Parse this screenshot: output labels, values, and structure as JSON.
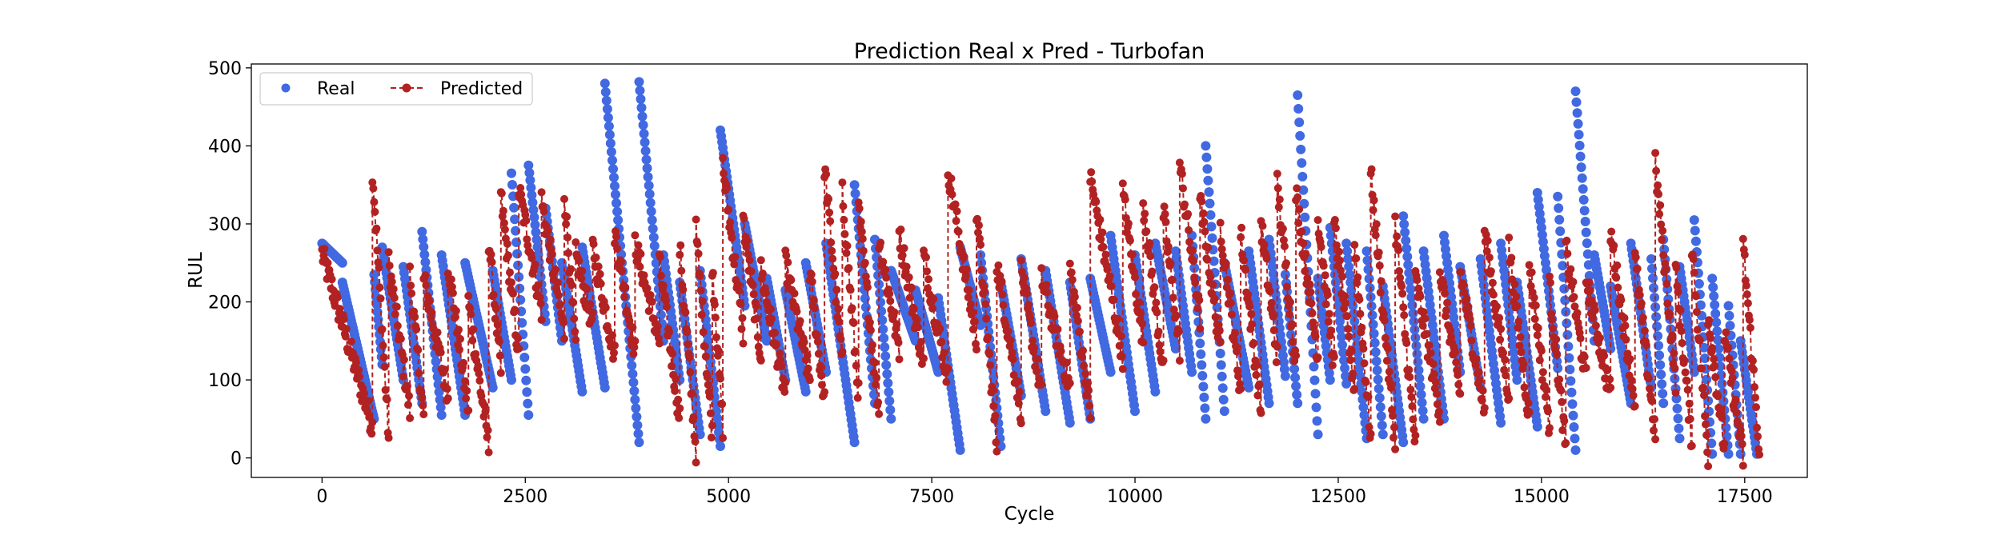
{
  "chart_data": {
    "type": "scatter",
    "title": "Prediction Real x Pred - Turbofan",
    "xlabel": "Cycle",
    "ylabel": "RUL",
    "xlim": [
      -870,
      18270
    ],
    "ylim": [
      -25,
      505
    ],
    "xticks": [
      0,
      2500,
      5000,
      7500,
      10000,
      12500,
      15000,
      17500
    ],
    "xtick_labels": [
      "0",
      "2500",
      "5000",
      "7500",
      "10000",
      "12500",
      "15000",
      "17500"
    ],
    "yticks": [
      0,
      100,
      200,
      300,
      400,
      500
    ],
    "ytick_labels": [
      "0",
      "100",
      "200",
      "300",
      "400",
      "500"
    ],
    "grid": false,
    "legend": {
      "placement": "top-left",
      "columns": 2,
      "entries": [
        "Real",
        "Predicted"
      ]
    },
    "series": [
      {
        "name": "Real",
        "style": "markers",
        "color": "#4169e1",
        "runs": [
          [
            0,
            275,
            250
          ],
          [
            250,
            225,
            50
          ],
          [
            640,
            235,
            120
          ],
          [
            740,
            270,
            100
          ],
          [
            1000,
            245,
            70
          ],
          [
            1230,
            290,
            55
          ],
          [
            1470,
            260,
            55
          ],
          [
            1760,
            250,
            90
          ],
          [
            2100,
            240,
            100
          ],
          [
            2330,
            365,
            55
          ],
          [
            2540,
            375,
            175
          ],
          [
            2750,
            320,
            150
          ],
          [
            2950,
            250,
            85
          ],
          [
            3200,
            270,
            90
          ],
          [
            3480,
            480,
            20
          ],
          [
            3900,
            482,
            150
          ],
          [
            4200,
            260,
            100
          ],
          [
            4400,
            225,
            30
          ],
          [
            4650,
            240,
            15
          ],
          [
            4900,
            420,
            195
          ],
          [
            5200,
            300,
            150
          ],
          [
            5470,
            230,
            100
          ],
          [
            5700,
            215,
            85
          ],
          [
            5950,
            250,
            110
          ],
          [
            6200,
            275,
            20
          ],
          [
            6550,
            350,
            70
          ],
          [
            6800,
            280,
            50
          ],
          [
            7000,
            240,
            150
          ],
          [
            7300,
            215,
            110
          ],
          [
            7580,
            205,
            10
          ],
          [
            7850,
            270,
            170
          ],
          [
            8100,
            260,
            15
          ],
          [
            8350,
            225,
            80
          ],
          [
            8600,
            255,
            60
          ],
          [
            8900,
            240,
            45
          ],
          [
            9200,
            225,
            50
          ],
          [
            9450,
            230,
            110
          ],
          [
            9700,
            285,
            60
          ],
          [
            10000,
            260,
            85
          ],
          [
            10250,
            275,
            140
          ],
          [
            10500,
            265,
            110
          ],
          [
            10700,
            285,
            50
          ],
          [
            10870,
            400,
            60
          ],
          [
            11100,
            250,
            90
          ],
          [
            11400,
            265,
            70
          ],
          [
            11650,
            280,
            105
          ],
          [
            11850,
            235,
            70
          ],
          [
            12000,
            465,
            30
          ],
          [
            12250,
            230,
            100
          ],
          [
            12400,
            295,
            95
          ],
          [
            12600,
            275,
            25
          ],
          [
            12850,
            265,
            30
          ],
          [
            13050,
            220,
            20
          ],
          [
            13300,
            310,
            50
          ],
          [
            13550,
            265,
            50
          ],
          [
            13800,
            285,
            110
          ],
          [
            14000,
            245,
            90
          ],
          [
            14250,
            255,
            45
          ],
          [
            14500,
            275,
            100
          ],
          [
            14700,
            225,
            40
          ],
          [
            14950,
            340,
            115
          ],
          [
            15200,
            335,
            10
          ],
          [
            15420,
            470,
            150
          ],
          [
            15650,
            260,
            140
          ],
          [
            15850,
            220,
            70
          ],
          [
            16100,
            275,
            90
          ],
          [
            16350,
            255,
            70
          ],
          [
            16500,
            280,
            25
          ],
          [
            16700,
            245,
            110
          ],
          [
            16880,
            305,
            5
          ],
          [
            17100,
            230,
            5
          ],
          [
            17300,
            195,
            5
          ],
          [
            17450,
            150,
            5
          ]
        ]
      },
      {
        "name": "Predicted",
        "style": "dashed-line-markers",
        "color": "#b22222",
        "runs": [
          [
            0,
            262,
            40
          ],
          [
            620,
            370,
            25
          ],
          [
            820,
            250,
            60
          ],
          [
            1080,
            235,
            50
          ],
          [
            1250,
            230,
            80
          ],
          [
            1550,
            250,
            60
          ],
          [
            1800,
            200,
            15
          ],
          [
            2050,
            280,
            110
          ],
          [
            2200,
            335,
            130
          ],
          [
            2420,
            345,
            190
          ],
          [
            2700,
            330,
            160
          ],
          [
            2980,
            340,
            140
          ],
          [
            3120,
            260,
            170
          ],
          [
            3330,
            270,
            130
          ],
          [
            3600,
            290,
            135
          ],
          [
            3850,
            275,
            150
          ],
          [
            4150,
            250,
            50
          ],
          [
            4400,
            270,
            10
          ],
          [
            4600,
            290,
            30
          ],
          [
            4800,
            250,
            40
          ],
          [
            4930,
            375,
            160
          ],
          [
            5180,
            305,
            130
          ],
          [
            5400,
            240,
            80
          ],
          [
            5700,
            250,
            100
          ],
          [
            6000,
            240,
            70
          ],
          [
            6180,
            375,
            120
          ],
          [
            6400,
            340,
            80
          ],
          [
            6600,
            320,
            60
          ],
          [
            6850,
            280,
            140
          ],
          [
            7100,
            290,
            120
          ],
          [
            7400,
            260,
            100
          ],
          [
            7700,
            370,
            150
          ],
          [
            8050,
            320,
            15
          ],
          [
            8300,
            250,
            60
          ],
          [
            8600,
            240,
            80
          ],
          [
            8850,
            230,
            90
          ],
          [
            9200,
            245,
            60
          ],
          [
            9450,
            360,
            130
          ],
          [
            9850,
            340,
            150
          ],
          [
            10100,
            330,
            110
          ],
          [
            10350,
            315,
            140
          ],
          [
            10550,
            375,
            180
          ],
          [
            10800,
            330,
            140
          ],
          [
            11050,
            300,
            85
          ],
          [
            11300,
            290,
            60
          ],
          [
            11550,
            300,
            130
          ],
          [
            11750,
            350,
            120
          ],
          [
            11980,
            340,
            130
          ],
          [
            12250,
            310,
            115
          ],
          [
            12450,
            300,
            90
          ],
          [
            12700,
            275,
            25
          ],
          [
            12900,
            365,
            20
          ],
          [
            13200,
            300,
            15
          ],
          [
            13450,
            230,
            60
          ],
          [
            13750,
            240,
            80
          ],
          [
            14000,
            240,
            60
          ],
          [
            14300,
            290,
            80
          ],
          [
            14600,
            270,
            50
          ],
          [
            14850,
            250,
            40
          ],
          [
            15100,
            220,
            10
          ],
          [
            15300,
            270,
            100
          ],
          [
            15550,
            230,
            80
          ],
          [
            15850,
            290,
            70
          ],
          [
            16150,
            255,
            30
          ],
          [
            16400,
            375,
            100
          ],
          [
            16650,
            240,
            20
          ],
          [
            16850,
            275,
            0
          ],
          [
            17050,
            185,
            10
          ],
          [
            17250,
            160,
            0
          ],
          [
            17480,
            275,
            10
          ]
        ]
      }
    ]
  }
}
